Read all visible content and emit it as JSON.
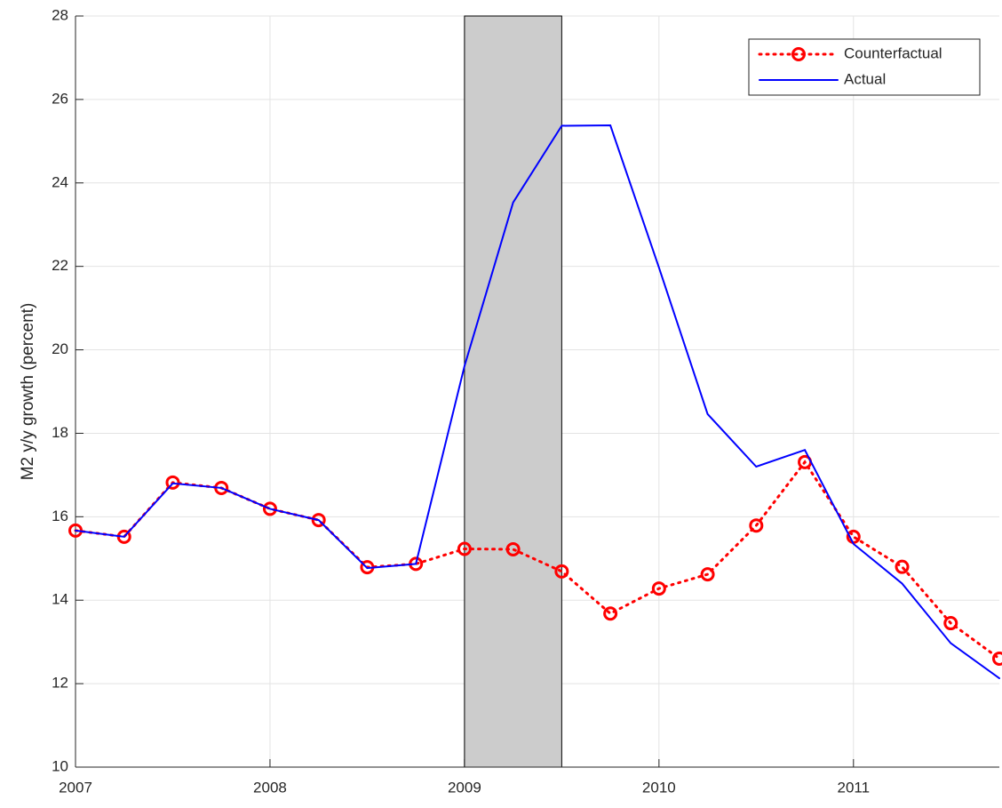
{
  "chart_data": {
    "type": "line",
    "ylabel": "M2 y/y growth (percent)",
    "x": [
      2007,
      2007.25,
      2007.5,
      2007.75,
      2008,
      2008.25,
      2008.5,
      2008.75,
      2009,
      2009.25,
      2009.5,
      2009.75,
      2010,
      2010.25,
      2010.5,
      2010.75,
      2011,
      2011.25,
      2011.5,
      2011.75
    ],
    "series": [
      {
        "name": "Counterfactual",
        "color": "#ff0000",
        "style": "dotted-circle",
        "values": [
          15.67,
          15.52,
          16.82,
          16.69,
          16.19,
          15.92,
          14.79,
          14.87,
          15.23,
          15.22,
          14.69,
          13.68,
          14.28,
          14.62,
          15.79,
          17.31,
          15.52,
          14.8,
          13.45,
          12.6
        ]
      },
      {
        "name": "Actual",
        "color": "#0000ff",
        "style": "solid",
        "values": [
          15.67,
          15.52,
          16.8,
          16.69,
          16.19,
          15.92,
          14.77,
          14.87,
          19.61,
          23.53,
          25.37,
          25.38,
          21.97,
          18.46,
          17.2,
          17.6,
          15.35,
          14.4,
          12.97,
          12.13
        ]
      }
    ],
    "shaded_region": [
      2009,
      2009.5
    ],
    "shaded_color": "#cccccc",
    "xlim": [
      2007,
      2011.75
    ],
    "xticks": [
      2007,
      2008,
      2009,
      2010,
      2011
    ],
    "ylim": [
      10,
      28
    ],
    "yticks": [
      10,
      12,
      14,
      16,
      18,
      20,
      22,
      24,
      26,
      28
    ],
    "grid": true,
    "legend": "upper-right"
  }
}
